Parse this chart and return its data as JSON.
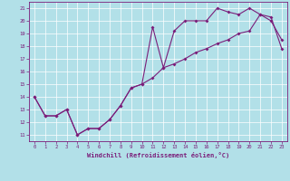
{
  "title": "",
  "xlabel": "Windchill (Refroidissement éolien,°C)",
  "ylabel": "",
  "line1_x": [
    0,
    1,
    2,
    3,
    4,
    5,
    6,
    7,
    8,
    9,
    10,
    11,
    12,
    13,
    14,
    15,
    16,
    17,
    18,
    19,
    20,
    21,
    22,
    23
  ],
  "line1_y": [
    14,
    12.5,
    12.5,
    13,
    11,
    11.5,
    11.5,
    12.2,
    13.3,
    14.7,
    15.0,
    19.5,
    16.3,
    19.2,
    20.0,
    20.0,
    20.0,
    21.0,
    20.7,
    20.5,
    21.0,
    20.5,
    20.0,
    18.5
  ],
  "line2_x": [
    0,
    1,
    2,
    3,
    4,
    5,
    6,
    7,
    8,
    9,
    10,
    11,
    12,
    13,
    14,
    15,
    16,
    17,
    18,
    19,
    20,
    21,
    22,
    23
  ],
  "line2_y": [
    14,
    12.5,
    12.5,
    13,
    11,
    11.5,
    11.5,
    12.2,
    13.3,
    14.7,
    15.0,
    15.5,
    16.3,
    16.6,
    17.0,
    17.5,
    17.8,
    18.2,
    18.5,
    19.0,
    19.2,
    20.5,
    20.3,
    17.8
  ],
  "line_color": "#7b1e7a",
  "bg_color": "#b2e0e8",
  "grid_color": "#ffffff",
  "xlim": [
    -0.5,
    23.5
  ],
  "ylim": [
    10.5,
    21.5
  ],
  "yticks": [
    11,
    12,
    13,
    14,
    15,
    16,
    17,
    18,
    19,
    20,
    21
  ],
  "xticks": [
    0,
    1,
    2,
    3,
    4,
    5,
    6,
    7,
    8,
    9,
    10,
    11,
    12,
    13,
    14,
    15,
    16,
    17,
    18,
    19,
    20,
    21,
    22,
    23
  ]
}
